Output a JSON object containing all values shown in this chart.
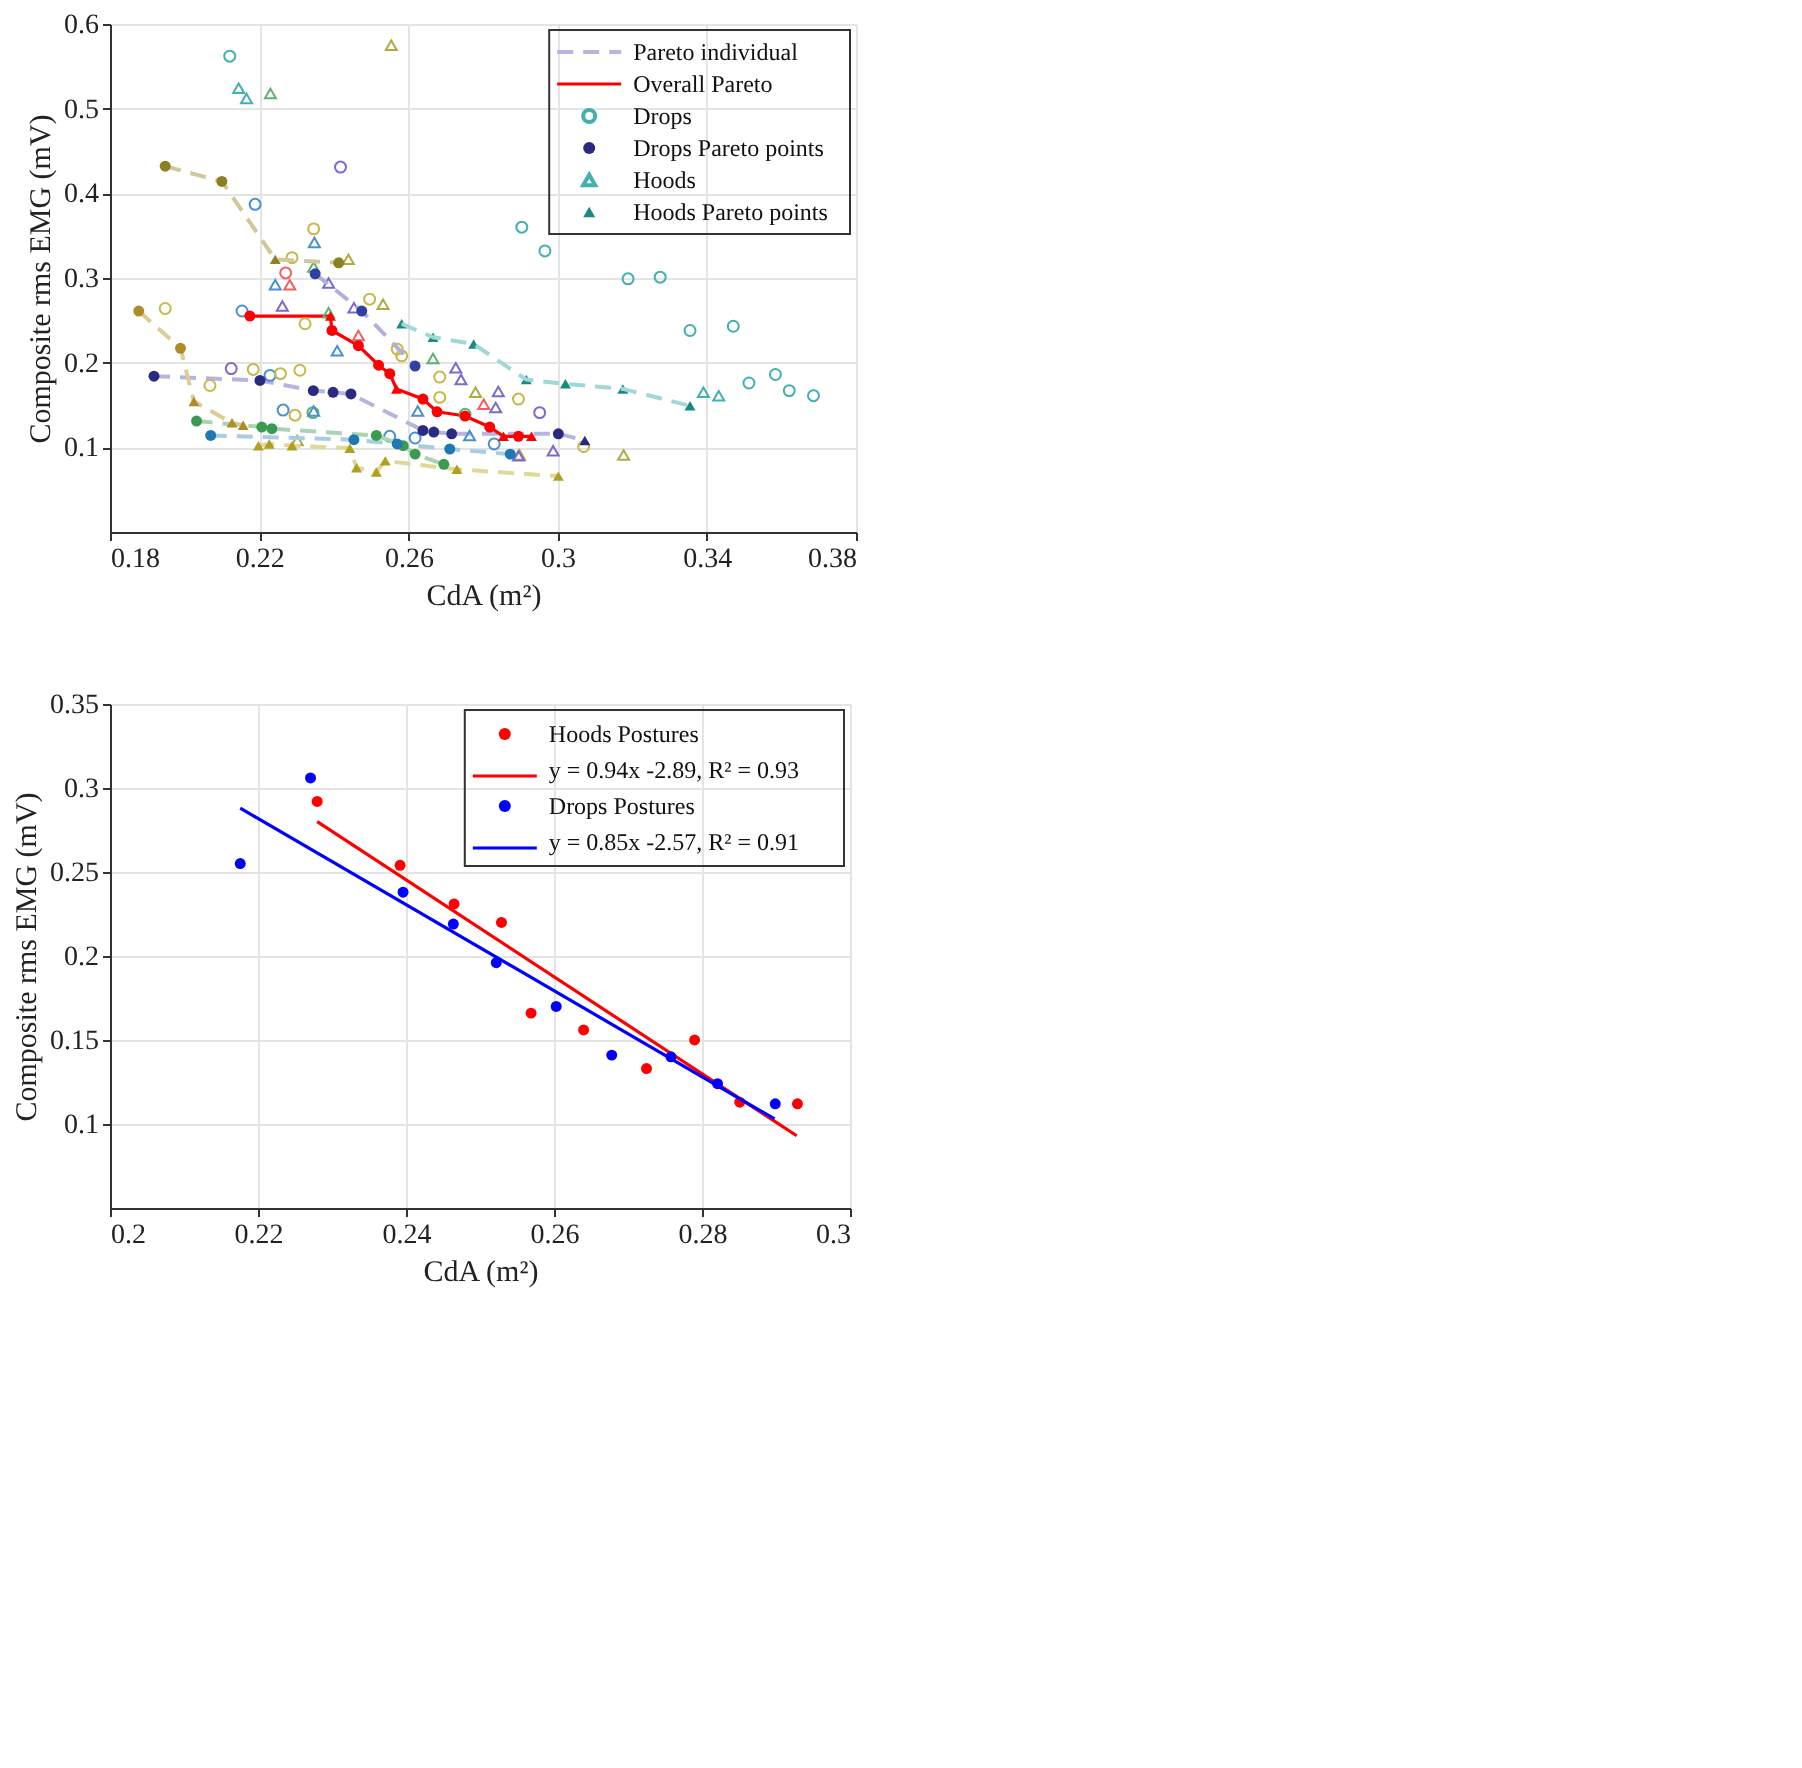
{
  "chart_data": [
    {
      "type": "scatter",
      "xlabel": "CdA (m²)",
      "ylabel": "Composite rms EMG (mV)",
      "xlim": [
        0.18,
        0.38
      ],
      "xticks": [
        0.18,
        0.22,
        0.26,
        0.3,
        0.34,
        0.38
      ],
      "ylim": [
        0,
        0.6
      ],
      "yticks": [
        0.1,
        0.2,
        0.3,
        0.4,
        0.5,
        0.6
      ],
      "grid": true,
      "legend": "top right",
      "series": [
        {
          "name": "Pareto individual",
          "type": "line",
          "line_style": "dashed",
          "marker": "none",
          "color": "#b8b4e0",
          "x": [
            0.1918,
            0.2202,
            0.2345,
            0.2398,
            0.2446,
            0.2639,
            0.2668,
            0.2716,
            0.3002,
            0.3073
          ],
          "values": [
            0.184,
            0.179,
            0.167,
            0.165,
            0.163,
            0.12,
            0.118,
            0.116,
            0.116,
            0.108
          ]
        },
        {
          "name": "Overall Pareto",
          "type": "line",
          "line_style": "solid",
          "marker": "none",
          "color": "#ff0000",
          "x": [
            0.2175,
            0.2391,
            0.2395,
            0.2466,
            0.252,
            0.255,
            0.2568,
            0.2639,
            0.2677,
            0.2752,
            0.2818,
            0.2855,
            0.2895,
            0.293
          ],
          "values": [
            0.255,
            0.255,
            0.238,
            0.22,
            0.197,
            0.187,
            0.169,
            0.157,
            0.142,
            0.137,
            0.124,
            0.113,
            0.113,
            0.113
          ]
        },
        {
          "name": "Drops",
          "type": "scatter",
          "marker": "circle",
          "x": [
            0.2121,
            0.2904,
            0.2966,
            0.3189,
            0.3275,
            0.3355,
            0.3471,
            0.3513,
            0.3584,
            0.3621,
            0.3686,
            0.2418,
            0.2125,
            0.2952,
            0.2189,
            0.2154,
            0.2229,
            0.2264,
            0.255,
            0.2618,
            0.283,
            0.2346,
            0.1948,
            0.2068,
            0.2184,
            0.2257,
            0.2309,
            0.2323,
            0.2496,
            0.257,
            0.2582,
            0.2684,
            0.2684,
            0.2895,
            0.307,
            0.2296,
            0.2288,
            0.2271,
            0.2344,
            0.2752
          ],
          "values": [
            0.562,
            0.36,
            0.332,
            0.299,
            0.301,
            0.238,
            0.243,
            0.176,
            0.186,
            0.167,
            0.161,
            0.431,
            0.193,
            0.141,
            0.387,
            0.261,
            0.185,
            0.144,
            0.113,
            0.111,
            0.104,
            0.358,
            0.264,
            0.173,
            0.192,
            0.187,
            0.191,
            0.246,
            0.275,
            0.216,
            0.208,
            0.183,
            0.159,
            0.157,
            0.101,
            0.138,
            0.324,
            0.306,
            0.141,
            0.139
          ],
          "colors": [
            "#40b0b0",
            "#40b0b0",
            "#40b0b0",
            "#40b0b0",
            "#40b0b0",
            "#40b0b0",
            "#40b0b0",
            "#40b0b0",
            "#40b0b0",
            "#40b0b0",
            "#40b0b0",
            "#7a6ad0",
            "#7a6ad0",
            "#7a6ad0",
            "#4a90d0",
            "#4a90d0",
            "#4a90d0",
            "#4a90d0",
            "#4a90d0",
            "#4a90d0",
            "#4a90d0",
            "#c8b848",
            "#c8b848",
            "#c8b848",
            "#c8b848",
            "#c8b848",
            "#c8b848",
            "#c8b848",
            "#c8b848",
            "#c8b848",
            "#c8b848",
            "#c8b848",
            "#c8b848",
            "#c8b848",
            "#c8b848",
            "#c8b848",
            "#c8b848",
            "#f06060",
            "#60b070",
            "#60b070"
          ]
        },
        {
          "name": "Drops Pareto points",
          "type": "scatter",
          "marker": "circle",
          "color": "#2a2a80",
          "x": [
            0.1918,
            0.2202,
            0.2345,
            0.2398,
            0.2446,
            0.2639,
            0.2668,
            0.2716,
            0.3002
          ],
          "values": [
            0.184,
            0.179,
            0.167,
            0.165,
            0.163,
            0.12,
            0.118,
            0.116,
            0.116
          ]
        },
        {
          "name": "Hoods",
          "type": "scatter",
          "marker": "triangle",
          "x": [
            0.2145,
            0.2166,
            0.3391,
            0.3432,
            0.223,
            0.2346,
            0.2386,
            0.2666,
            0.2554,
            0.2439,
            0.2532,
            0.3177,
            0.2898,
            0.2302,
            0.278,
            0.2348,
            0.2243,
            0.2409,
            0.2346,
            0.2764,
            0.2625,
            0.2262,
            0.2386,
            0.2727,
            0.2741,
            0.2841,
            0.2834,
            0.2988,
            0.2895,
            0.2454,
            0.2282,
            0.2466,
            0.2802
          ],
          "values": [
            0.524,
            0.512,
            0.165,
            0.161,
            0.518,
            0.313,
            0.259,
            0.205,
            0.575,
            0.322,
            0.269,
            0.091,
            0.091,
            0.108,
            0.165,
            0.342,
            0.292,
            0.214,
            0.143,
            0.114,
            0.143,
            0.267,
            0.294,
            0.194,
            0.18,
            0.166,
            0.147,
            0.096,
            0.09,
            0.265,
            0.292,
            0.232,
            0.151
          ],
          "colors": [
            "#40b0b0",
            "#40b0b0",
            "#40b0b0",
            "#40b0b0",
            "#60b070",
            "#60b070",
            "#60b070",
            "#60b070",
            "#b0a840",
            "#b0a840",
            "#b0a840",
            "#b0a840",
            "#b0a840",
            "#b0a840",
            "#b0a840",
            "#4a90d0",
            "#4a90d0",
            "#4a90d0",
            "#4a90d0",
            "#4a90d0",
            "#4a90d0",
            "#7a6ad0",
            "#7a6ad0",
            "#7a6ad0",
            "#7a6ad0",
            "#7a6ad0",
            "#7a6ad0",
            "#7a6ad0",
            "#7a6ad0",
            "#7a6ad0",
            "#f06060",
            "#f06060",
            "#f06060"
          ]
        },
        {
          "name": "Hoods Pareto points",
          "type": "scatter",
          "marker": "triangle",
          "color": "#1a8a80",
          "x": [
            0.2582,
            0.2666,
            0.2775,
            0.2916,
            0.3021,
            0.3175,
            0.3355
          ],
          "values": [
            0.246,
            0.23,
            0.222,
            0.18,
            0.175,
            0.169,
            0.149
          ]
        },
        {
          "type": "line",
          "line_style": "dashed",
          "marker": "none",
          "color": "#d0c898",
          "x": [
            0.1948,
            0.21,
            0.2243,
            0.2413
          ],
          "values": [
            0.432,
            0.414,
            0.322,
            0.318
          ]
        },
        {
          "type": "line",
          "line_style": "dashed",
          "marker": "none",
          "color": "#dccc98",
          "x": [
            0.1877,
            0.1989,
            0.2025,
            0.2127,
            0.2157
          ],
          "values": [
            0.261,
            0.217,
            0.154,
            0.129,
            0.126
          ]
        },
        {
          "type": "line",
          "line_style": "dashed",
          "marker": "none",
          "color": "#a8d4b4",
          "x": [
            0.2032,
            0.2207,
            0.2234,
            0.2514,
            0.2586,
            0.2618,
            0.2695
          ],
          "values": [
            0.131,
            0.124,
            0.122,
            0.114,
            0.102,
            0.092,
            0.08
          ]
        },
        {
          "type": "line",
          "line_style": "dashed",
          "marker": "none",
          "color": "#a8cce0",
          "x": [
            0.207,
            0.2454,
            0.257,
            0.2711,
            0.2873
          ],
          "values": [
            0.114,
            0.109,
            0.104,
            0.098,
            0.092
          ]
        },
        {
          "type": "line",
          "line_style": "dashed",
          "marker": "none",
          "color": "#e0d898",
          "x": [
            0.2198,
            0.2227,
            0.2288,
            0.2443,
            0.2461,
            0.2514,
            0.2538,
            0.273,
            0.3002
          ],
          "values": [
            0.102,
            0.104,
            0.102,
            0.099,
            0.076,
            0.071,
            0.084,
            0.074,
            0.066
          ]
        },
        {
          "type": "line",
          "line_style": "dashed",
          "marker": "none",
          "color": "#a0d8d8",
          "x": [
            0.2582,
            0.2666,
            0.2775,
            0.2916,
            0.3021,
            0.3175,
            0.3355
          ],
          "values": [
            0.246,
            0.23,
            0.222,
            0.18,
            0.175,
            0.169,
            0.149
          ]
        },
        {
          "type": "line",
          "line_style": "dashed",
          "marker": "none",
          "color": "#b0b0e0",
          "x": [
            0.235,
            0.2475,
            0.2618
          ],
          "values": [
            0.305,
            0.261,
            0.196
          ]
        },
        {
          "type": "scatter",
          "marker": "circle",
          "color": "#8c8020",
          "x": [
            0.1948,
            0.21,
            0.2413
          ],
          "values": [
            0.432,
            0.414,
            0.318
          ]
        },
        {
          "type": "scatter",
          "marker": "circle",
          "color": "#b08c28",
          "x": [
            0.1877,
            0.1989
          ],
          "values": [
            0.261,
            0.217
          ]
        },
        {
          "type": "scatter",
          "marker": "circle",
          "color": "#3a9a50",
          "x": [
            0.2032,
            0.2207,
            0.2234,
            0.2514,
            0.2586,
            0.2618,
            0.2695
          ],
          "values": [
            0.131,
            0.124,
            0.122,
            0.114,
            0.102,
            0.092,
            0.08
          ]
        },
        {
          "type": "scatter",
          "marker": "circle",
          "color": "#1f77b4",
          "x": [
            0.207,
            0.2454,
            0.257,
            0.2711,
            0.2873
          ],
          "values": [
            0.114,
            0.109,
            0.104,
            0.098,
            0.092
          ]
        },
        {
          "type": "scatter",
          "marker": "circle",
          "color": "#3040a0",
          "x": [
            0.235,
            0.2475,
            0.2618
          ],
          "values": [
            0.305,
            0.261,
            0.196
          ]
        },
        {
          "type": "scatter",
          "marker": "circle",
          "color": "#ff0000",
          "x": [
            0.2175,
            0.2395,
            0.2466,
            0.252,
            0.255,
            0.2639,
            0.2677,
            0.2752,
            0.2818,
            0.2895
          ],
          "values": [
            0.255,
            0.238,
            0.22,
            0.197,
            0.187,
            0.157,
            0.142,
            0.137,
            0.124,
            0.113
          ]
        },
        {
          "type": "scatter",
          "marker": "triangle",
          "color": "#8c8020",
          "x": [
            0.2243
          ],
          "values": [
            0.322
          ]
        },
        {
          "type": "scatter",
          "marker": "triangle",
          "color": "#b08c28",
          "x": [
            0.2025,
            0.2127,
            0.2157
          ],
          "values": [
            0.154,
            0.129,
            0.126
          ]
        },
        {
          "type": "scatter",
          "marker": "triangle",
          "color": "#2a2a80",
          "x": [
            0.3073
          ],
          "values": [
            0.108
          ]
        },
        {
          "type": "scatter",
          "marker": "triangle",
          "color": "#b0a020",
          "x": [
            0.2198,
            0.2227,
            0.2288,
            0.2443,
            0.2461,
            0.2514,
            0.2538,
            0.273,
            0.3002
          ],
          "values": [
            0.102,
            0.104,
            0.102,
            0.099,
            0.076,
            0.071,
            0.084,
            0.074,
            0.066
          ]
        },
        {
          "type": "scatter",
          "marker": "triangle",
          "color": "#ff0000",
          "x": [
            0.2391,
            0.2568,
            0.2855,
            0.293
          ],
          "values": [
            0.255,
            0.169,
            0.113,
            0.113
          ]
        }
      ]
    },
    {
      "type": "scatter",
      "xlabel": "CdA (m²)",
      "ylabel": "Composite rms EMG (mV)",
      "xlim": [
        0.2,
        0.3
      ],
      "xticks": [
        0.2,
        0.22,
        0.24,
        0.26,
        0.28,
        0.3
      ],
      "ylim": [
        0.05,
        0.35
      ],
      "yticks": [
        0.1,
        0.15,
        0.2,
        0.25,
        0.3,
        0.35
      ],
      "grid": true,
      "legend": "top right",
      "series": [
        {
          "name": "Hoods Postures",
          "type": "scatter",
          "marker": "circle",
          "color": "#ff0000",
          "x": [
            0.228,
            0.2392,
            0.2465,
            0.2529,
            0.2569,
            0.264,
            0.2725,
            0.279,
            0.2851,
            0.2929
          ],
          "values": [
            0.292,
            0.254,
            0.231,
            0.22,
            0.166,
            0.156,
            0.133,
            0.15,
            0.113,
            0.112
          ]
        },
        {
          "name": "y = 0.94x -2.89, R² = 0.93",
          "type": "line",
          "line_style": "solid",
          "marker": "none",
          "color": "#ff0000",
          "x": [
            0.228,
            0.2928
          ],
          "values": [
            0.28,
            0.093
          ]
        },
        {
          "name": "Drops Postures",
          "type": "scatter",
          "marker": "circle",
          "color": "#0000ff",
          "x": [
            0.2176,
            0.2271,
            0.2396,
            0.2464,
            0.2522,
            0.2603,
            0.2678,
            0.2758,
            0.2821,
            0.2899
          ],
          "values": [
            0.255,
            0.306,
            0.238,
            0.219,
            0.196,
            0.17,
            0.141,
            0.14,
            0.124,
            0.112
          ]
        },
        {
          "name": "y = 0.85x -2.57, R² = 0.91",
          "type": "line",
          "line_style": "solid",
          "marker": "none",
          "color": "#0000ff",
          "x": [
            0.2176,
            0.2898
          ],
          "values": [
            0.288,
            0.103
          ]
        }
      ]
    }
  ]
}
